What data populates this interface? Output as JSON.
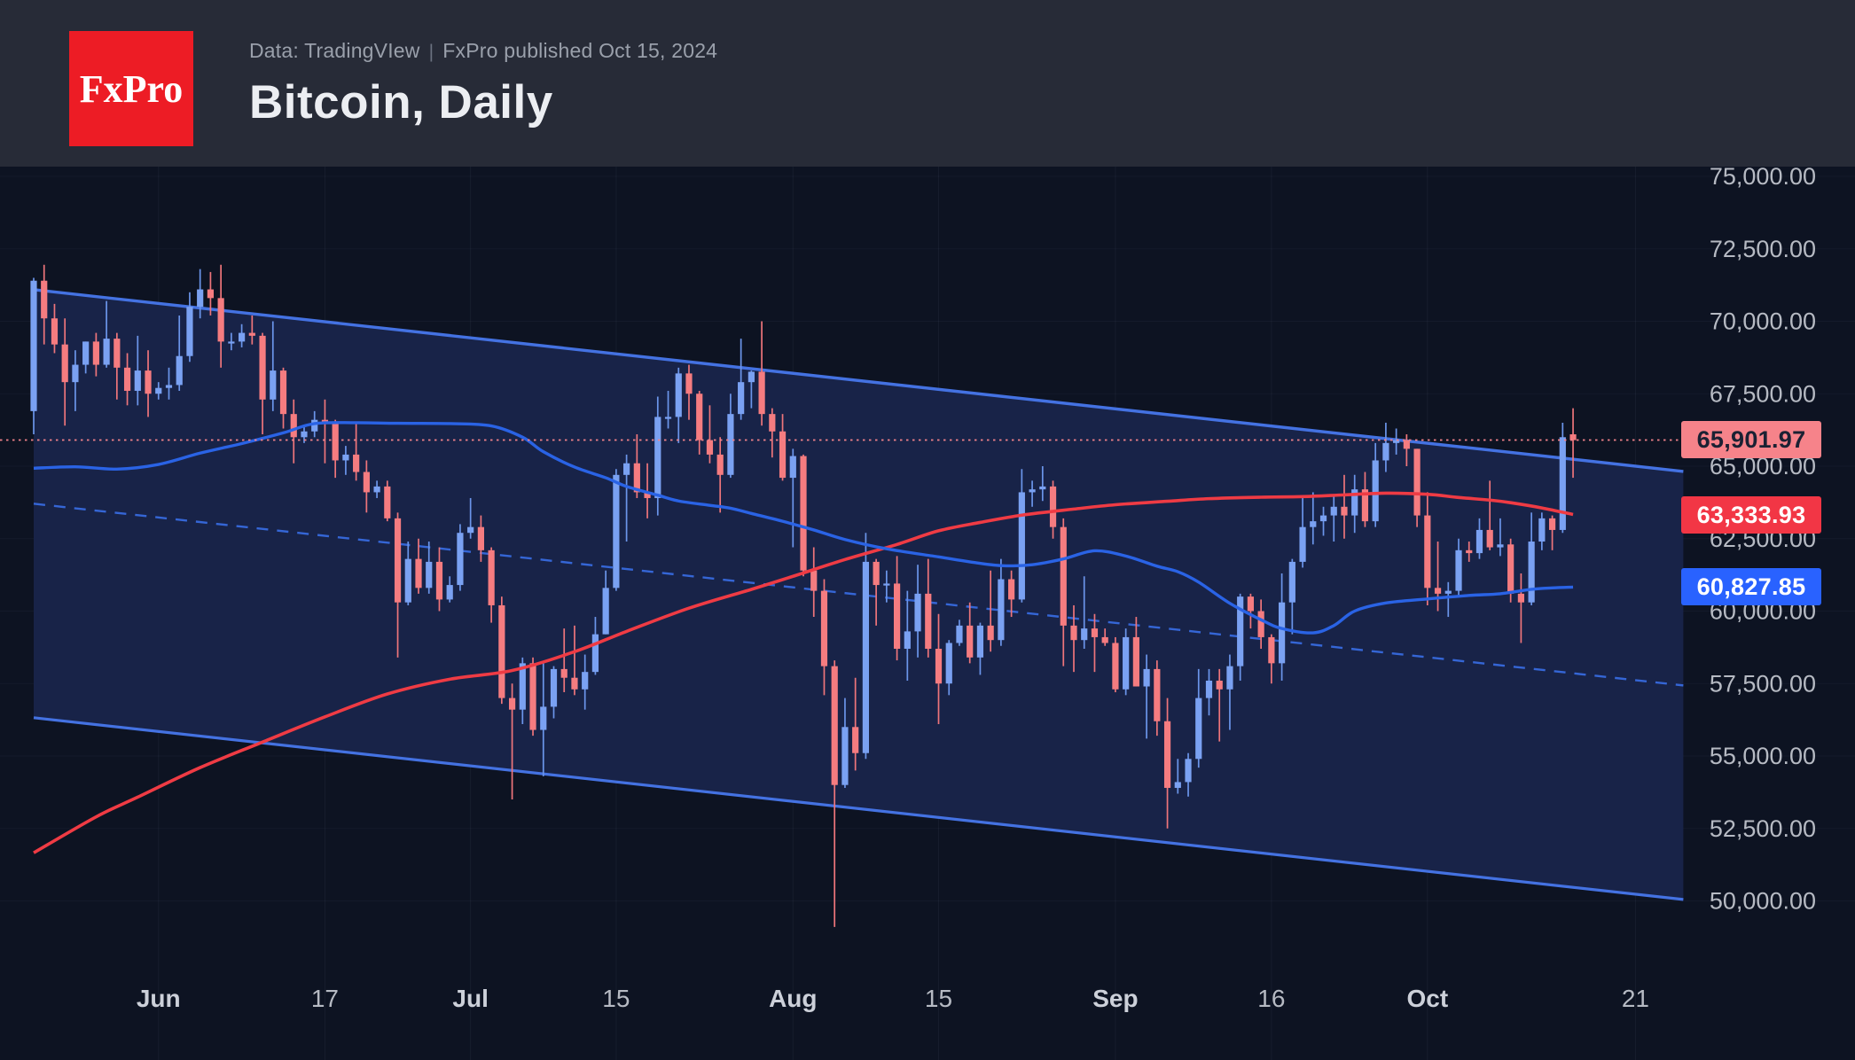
{
  "header": {
    "logo_text": "FxPro",
    "subtitle_source": "Data: TradingVIew",
    "subtitle_separator": "|",
    "subtitle_published": "FxPro published Oct 15, 2024",
    "title": "Bitcoin, Daily"
  },
  "colors": {
    "header_bg": "#272b37",
    "logo_bg": "#ed1c25",
    "page_bg": "#0d1322",
    "channel_fill": "#182348",
    "channel_line": "#4472e2",
    "channel_mid_line": "#3566d6",
    "grid_line": "#96a5c8",
    "candle_up": "#7aa1f2",
    "candle_up_wick": "#6b95ea",
    "candle_down": "#f57c80",
    "candle_down_wick": "#ee757b",
    "ma_red": "#ef3b44",
    "ma_blue": "#2a63e5",
    "price_line": "#f2838a",
    "axis_text": "#b6bac3",
    "axis_text_month": "#ccd0d9",
    "badge_last_bg": "#f6838a",
    "badge_last_text": "#1b2133",
    "badge_ma_red_bg": "#f23645",
    "badge_ma_blue_bg": "#2962ff"
  },
  "chart_data": {
    "type": "candlestick",
    "title": "Bitcoin, Daily",
    "symbol": "Bitcoin",
    "interval": "Daily",
    "start_date": "2024-05-20",
    "x_axis": {
      "labels": [
        {
          "label": "Jun",
          "day_index": 12,
          "month": true
        },
        {
          "label": "17",
          "day_index": 28,
          "month": false
        },
        {
          "label": "Jul",
          "day_index": 42,
          "month": true
        },
        {
          "label": "15",
          "day_index": 56,
          "month": false
        },
        {
          "label": "Aug",
          "day_index": 73,
          "month": true
        },
        {
          "label": "15",
          "day_index": 87,
          "month": false
        },
        {
          "label": "Sep",
          "day_index": 104,
          "month": true
        },
        {
          "label": "16",
          "day_index": 119,
          "month": false
        },
        {
          "label": "Oct",
          "day_index": 134,
          "month": true
        },
        {
          "label": "21",
          "day_index": 154,
          "month": false
        }
      ]
    },
    "y_axis": {
      "tick_values": [
        75000,
        72500,
        70000,
        67500,
        65000,
        62500,
        60000,
        57500,
        55000,
        52500,
        50000
      ],
      "tick_labels": [
        "75,000.00",
        "72,500.00",
        "70,000.00",
        "67,500.00",
        "65,000.00",
        "62,500.00",
        "60,000.00",
        "57,500.00",
        "55,000.00",
        "52,500.00",
        "50,000.00"
      ]
    },
    "candles": [
      [
        66900,
        71500,
        66100,
        71400
      ],
      [
        71400,
        71950,
        69200,
        70100
      ],
      [
        70100,
        70600,
        68900,
        69200
      ],
      [
        69200,
        70100,
        66400,
        67900
      ],
      [
        67900,
        69000,
        66900,
        68500
      ],
      [
        68500,
        69300,
        68200,
        69300
      ],
      [
        69300,
        69600,
        68100,
        68500
      ],
      [
        68500,
        70700,
        68400,
        69400
      ],
      [
        69400,
        69600,
        67300,
        68400
      ],
      [
        68400,
        68900,
        67100,
        67600
      ],
      [
        67600,
        69500,
        67100,
        68300
      ],
      [
        68300,
        69000,
        66700,
        67500
      ],
      [
        67500,
        67900,
        67300,
        67700
      ],
      [
        67700,
        68400,
        67300,
        67800
      ],
      [
        67800,
        70200,
        67600,
        68800
      ],
      [
        68800,
        71000,
        68600,
        70500
      ],
      [
        70500,
        71800,
        70100,
        71100
      ],
      [
        71100,
        71700,
        70200,
        70800
      ],
      [
        70800,
        71950,
        68400,
        69300
      ],
      [
        69300,
        69600,
        69000,
        69300
      ],
      [
        69300,
        69900,
        69100,
        69600
      ],
      [
        69600,
        70200,
        69200,
        69500
      ],
      [
        69500,
        69600,
        66100,
        67300
      ],
      [
        67300,
        70000,
        66900,
        68300
      ],
      [
        68300,
        68400,
        66300,
        66800
      ],
      [
        66800,
        67300,
        65100,
        66000
      ],
      [
        66000,
        66400,
        65800,
        66200
      ],
      [
        66200,
        66900,
        66000,
        66600
      ],
      [
        66600,
        67300,
        65100,
        66500
      ],
      [
        66500,
        66600,
        64600,
        65200
      ],
      [
        65200,
        65700,
        64700,
        65400
      ],
      [
        65400,
        66500,
        64500,
        64800
      ],
      [
        64800,
        65200,
        63400,
        64100
      ],
      [
        64100,
        64500,
        63900,
        64300
      ],
      [
        64300,
        64500,
        63100,
        63200
      ],
      [
        63200,
        63400,
        58400,
        60300
      ],
      [
        60300,
        62400,
        60200,
        61800
      ],
      [
        61800,
        62500,
        60600,
        60800
      ],
      [
        60800,
        62400,
        60600,
        61700
      ],
      [
        61700,
        62200,
        60000,
        60400
      ],
      [
        60400,
        61200,
        60300,
        60900
      ],
      [
        60900,
        63000,
        60700,
        62700
      ],
      [
        62700,
        63900,
        62500,
        62900
      ],
      [
        62900,
        63300,
        61700,
        62100
      ],
      [
        62100,
        62200,
        59600,
        60200
      ],
      [
        60200,
        60500,
        56800,
        57000
      ],
      [
        57000,
        57500,
        53500,
        56600
      ],
      [
        56600,
        58400,
        56100,
        58200
      ],
      [
        58200,
        58400,
        55700,
        55900
      ],
      [
        55900,
        58200,
        54300,
        56700
      ],
      [
        56700,
        58100,
        56300,
        58000
      ],
      [
        58000,
        59400,
        57200,
        57700
      ],
      [
        57700,
        59500,
        57100,
        57300
      ],
      [
        57300,
        58500,
        56600,
        57900
      ],
      [
        57900,
        59800,
        57800,
        59200
      ],
      [
        59200,
        61400,
        59200,
        60800
      ],
      [
        60800,
        64900,
        60700,
        64700
      ],
      [
        64700,
        65400,
        62400,
        65100
      ],
      [
        65100,
        66100,
        63900,
        64100
      ],
      [
        64100,
        65100,
        63200,
        63900
      ],
      [
        63900,
        67400,
        63300,
        66700
      ],
      [
        66700,
        67600,
        66300,
        66700
      ],
      [
        66700,
        68400,
        65800,
        68200
      ],
      [
        68200,
        68500,
        66600,
        67500
      ],
      [
        67500,
        67600,
        65400,
        65900
      ],
      [
        65900,
        67100,
        65100,
        65400
      ],
      [
        65400,
        66000,
        63400,
        64700
      ],
      [
        64700,
        67500,
        64600,
        66800
      ],
      [
        66800,
        69400,
        66600,
        67900
      ],
      [
        67900,
        68300,
        67000,
        68260
      ],
      [
        68260,
        70000,
        66400,
        66800
      ],
      [
        66800,
        67000,
        65300,
        66200
      ],
      [
        66200,
        66800,
        64500,
        64600
      ],
      [
        64600,
        65600,
        62200,
        65350
      ],
      [
        65350,
        65400,
        61200,
        61400
      ],
      [
        61400,
        62200,
        59800,
        60700
      ],
      [
        60700,
        61100,
        57100,
        58100
      ],
      [
        58100,
        58300,
        49100,
        54000
      ],
      [
        54000,
        57000,
        53900,
        56000
      ],
      [
        56000,
        57700,
        54500,
        55100
      ],
      [
        55100,
        62700,
        54900,
        61700
      ],
      [
        61700,
        61800,
        59500,
        60900
      ],
      [
        60900,
        61400,
        60300,
        60950
      ],
      [
        60950,
        61900,
        58300,
        58700
      ],
      [
        58700,
        60700,
        57600,
        59300
      ],
      [
        59300,
        61600,
        58400,
        60600
      ],
      [
        60600,
        61800,
        58400,
        58700
      ],
      [
        58700,
        59900,
        56100,
        57500
      ],
      [
        57500,
        59000,
        57100,
        58900
      ],
      [
        58900,
        59700,
        58800,
        59500
      ],
      [
        59500,
        60300,
        58200,
        58400
      ],
      [
        58400,
        59600,
        57800,
        59500
      ],
      [
        59500,
        61400,
        58600,
        59000
      ],
      [
        59000,
        61800,
        58800,
        61100
      ],
      [
        61100,
        61400,
        59800,
        60400
      ],
      [
        60400,
        64900,
        60300,
        64100
      ],
      [
        64100,
        64500,
        63600,
        64200
      ],
      [
        64200,
        65000,
        63800,
        64300
      ],
      [
        64300,
        64500,
        62500,
        62900
      ],
      [
        62900,
        63200,
        58100,
        59500
      ],
      [
        59500,
        60200,
        57900,
        59000
      ],
      [
        59000,
        61200,
        58700,
        59400
      ],
      [
        59400,
        59900,
        57900,
        59100
      ],
      [
        59100,
        59400,
        58800,
        58900
      ],
      [
        58900,
        59100,
        57200,
        57300
      ],
      [
        57300,
        59400,
        57100,
        59100
      ],
      [
        59100,
        59800,
        57400,
        57400
      ],
      [
        57400,
        58500,
        55600,
        58000
      ],
      [
        58000,
        58300,
        55700,
        56200
      ],
      [
        56200,
        57000,
        52500,
        53900
      ],
      [
        53900,
        54900,
        53700,
        54100
      ],
      [
        54100,
        55100,
        53600,
        54900
      ],
      [
        54900,
        58000,
        54600,
        57000
      ],
      [
        57000,
        58000,
        56400,
        57600
      ],
      [
        57600,
        58000,
        55500,
        57300
      ],
      [
        57300,
        58500,
        55900,
        58100
      ],
      [
        58100,
        60600,
        57600,
        60500
      ],
      [
        60500,
        60600,
        59400,
        60000
      ],
      [
        60000,
        60400,
        58700,
        59100
      ],
      [
        59100,
        59200,
        57500,
        58200
      ],
      [
        58200,
        61300,
        57600,
        60300
      ],
      [
        60300,
        61800,
        59200,
        61700
      ],
      [
        61700,
        63900,
        61500,
        62900
      ],
      [
        62900,
        64100,
        62300,
        63100
      ],
      [
        63100,
        63600,
        62600,
        63300
      ],
      [
        63300,
        64000,
        62400,
        63600
      ],
      [
        63600,
        64700,
        62500,
        63300
      ],
      [
        63300,
        64700,
        62700,
        64200
      ],
      [
        64200,
        64800,
        62900,
        63100
      ],
      [
        63100,
        65800,
        62900,
        65200
      ],
      [
        65200,
        66500,
        64800,
        65800
      ],
      [
        65800,
        66300,
        65400,
        65900
      ],
      [
        65900,
        66100,
        65000,
        65600
      ],
      [
        65600,
        65600,
        62900,
        63300
      ],
      [
        63300,
        64100,
        60200,
        60800
      ],
      [
        60800,
        62400,
        60000,
        60600
      ],
      [
        60600,
        61000,
        59800,
        60700
      ],
      [
        60700,
        62500,
        60500,
        62100
      ],
      [
        62100,
        62400,
        61700,
        62000
      ],
      [
        62000,
        63200,
        61800,
        62800
      ],
      [
        62800,
        64500,
        62100,
        62200
      ],
      [
        62200,
        63200,
        61900,
        62300
      ],
      [
        62300,
        62500,
        60300,
        60600
      ],
      [
        60600,
        61300,
        58900,
        60300
      ],
      [
        60300,
        63400,
        60200,
        62400
      ],
      [
        62400,
        63400,
        62100,
        63200
      ],
      [
        63200,
        63300,
        62100,
        62800
      ],
      [
        62800,
        66500,
        62700,
        66000
      ],
      [
        66100,
        67000,
        64600,
        65900
      ]
    ],
    "overlays": {
      "price_line": {
        "value": 65901.97,
        "label": "65,901.97"
      },
      "ma_red": {
        "label": "63,333.93",
        "last_value": 63333.93,
        "points": [
          [
            0,
            51660
          ],
          [
            6,
            52900
          ],
          [
            10,
            53580
          ],
          [
            16,
            54600
          ],
          [
            22,
            55480
          ],
          [
            28,
            56350
          ],
          [
            34,
            57140
          ],
          [
            40,
            57650
          ],
          [
            46,
            57950
          ],
          [
            52,
            58600
          ],
          [
            57,
            59300
          ],
          [
            63,
            60100
          ],
          [
            69,
            60750
          ],
          [
            73,
            61200
          ],
          [
            78,
            61780
          ],
          [
            83,
            62300
          ],
          [
            87,
            62770
          ],
          [
            91,
            63060
          ],
          [
            95,
            63310
          ],
          [
            100,
            63520
          ],
          [
            104,
            63670
          ],
          [
            109,
            63790
          ],
          [
            113,
            63880
          ],
          [
            118,
            63930
          ],
          [
            122,
            63950
          ],
          [
            126,
            64010
          ],
          [
            130,
            64070
          ],
          [
            134,
            64030
          ],
          [
            137,
            63920
          ],
          [
            140,
            63830
          ],
          [
            142,
            63740
          ],
          [
            145,
            63560
          ],
          [
            148,
            63334
          ]
        ]
      },
      "ma_blue": {
        "label": "60,827.85",
        "last_value": 60827.85,
        "points": [
          [
            0,
            64930
          ],
          [
            4,
            64980
          ],
          [
            8,
            64900
          ],
          [
            12,
            65060
          ],
          [
            16,
            65450
          ],
          [
            20,
            65780
          ],
          [
            24,
            66150
          ],
          [
            27,
            66470
          ],
          [
            31,
            66500
          ],
          [
            35,
            66480
          ],
          [
            40,
            66470
          ],
          [
            44,
            66390
          ],
          [
            47,
            66000
          ],
          [
            49,
            65500
          ],
          [
            52,
            64970
          ],
          [
            55,
            64600
          ],
          [
            57,
            64300
          ],
          [
            60,
            64000
          ],
          [
            62,
            63800
          ],
          [
            65,
            63650
          ],
          [
            67,
            63550
          ],
          [
            69,
            63370
          ],
          [
            72,
            63100
          ],
          [
            75,
            62800
          ],
          [
            78,
            62470
          ],
          [
            82,
            62150
          ],
          [
            87,
            61870
          ],
          [
            90,
            61700
          ],
          [
            93,
            61570
          ],
          [
            96,
            61600
          ],
          [
            99,
            61800
          ],
          [
            102,
            62080
          ],
          [
            105,
            61900
          ],
          [
            108,
            61550
          ],
          [
            110,
            61360
          ],
          [
            112,
            61000
          ],
          [
            115,
            60270
          ],
          [
            118,
            59700
          ],
          [
            120,
            59400
          ],
          [
            123,
            59250
          ],
          [
            125,
            59500
          ],
          [
            127,
            60000
          ],
          [
            130,
            60280
          ],
          [
            134,
            60420
          ],
          [
            138,
            60540
          ],
          [
            141,
            60600
          ],
          [
            144,
            60750
          ],
          [
            146,
            60800
          ],
          [
            148,
            60828
          ]
        ]
      },
      "channel": {
        "type": "descending-parallel-channel",
        "start_day": 0,
        "end_day": 158.6,
        "upper_start_price": 71090,
        "upper_end_price": 64820,
        "lower_start_price": 56320,
        "lower_end_price": 50050,
        "mid_dashed": true
      }
    }
  }
}
